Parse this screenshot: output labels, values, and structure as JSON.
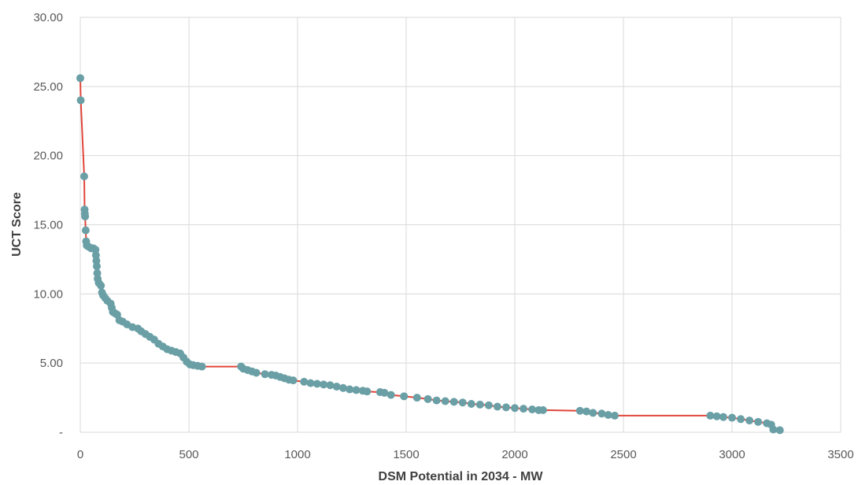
{
  "chart_data": {
    "type": "scatter",
    "xlabel": "DSM Potential in 2034 - MW",
    "ylabel": "UCT Score",
    "xlim": [
      0,
      3500
    ],
    "ylim": [
      0,
      30
    ],
    "grid": true,
    "x_ticks": [
      0,
      500,
      1000,
      1500,
      2000,
      2500,
      3000,
      3500
    ],
    "x_tick_labels": [
      "0",
      "500",
      "1000",
      "1500",
      "2000",
      "2500",
      "3000",
      "3500"
    ],
    "y_ticks": [
      0,
      5,
      10,
      15,
      20,
      25,
      30
    ],
    "y_tick_labels": [
      "-",
      "5.00",
      "10.00",
      "15.00",
      "20.00",
      "25.00",
      "30.00"
    ],
    "colors": {
      "marker": "#6a9fa6",
      "line": "#e0453a",
      "grid": "#d9d9d9"
    },
    "series": [
      {
        "style": "line-with-markers",
        "points": [
          [
            0,
            25.6
          ],
          [
            2,
            24.0
          ],
          [
            18,
            18.5
          ],
          [
            20,
            16.1
          ],
          [
            21,
            15.8
          ],
          [
            22,
            15.6
          ],
          [
            25,
            14.6
          ],
          [
            27,
            13.8
          ],
          [
            30,
            13.5
          ],
          [
            40,
            13.4
          ],
          [
            50,
            13.3
          ],
          [
            60,
            13.3
          ],
          [
            70,
            13.2
          ],
          [
            72,
            12.8
          ],
          [
            74,
            12.4
          ],
          [
            76,
            12.0
          ],
          [
            78,
            11.5
          ],
          [
            80,
            11.1
          ],
          [
            85,
            10.8
          ],
          [
            95,
            10.6
          ],
          [
            100,
            10.1
          ],
          [
            105,
            9.9
          ],
          [
            115,
            9.7
          ],
          [
            125,
            9.5
          ],
          [
            140,
            9.3
          ],
          [
            145,
            9.0
          ],
          [
            150,
            8.7
          ],
          [
            160,
            8.6
          ],
          [
            170,
            8.5
          ],
          [
            180,
            8.1
          ],
          [
            195,
            8.0
          ],
          [
            215,
            7.8
          ],
          [
            240,
            7.6
          ],
          [
            265,
            7.5
          ],
          [
            280,
            7.3
          ],
          [
            300,
            7.1
          ],
          [
            320,
            6.9
          ],
          [
            340,
            6.7
          ],
          [
            360,
            6.4
          ],
          [
            380,
            6.2
          ],
          [
            400,
            6.0
          ],
          [
            420,
            5.9
          ],
          [
            440,
            5.8
          ],
          [
            460,
            5.7
          ],
          [
            475,
            5.4
          ],
          [
            490,
            5.1
          ],
          [
            505,
            4.9
          ],
          [
            520,
            4.85
          ],
          [
            540,
            4.8
          ],
          [
            560,
            4.75
          ],
          [
            740,
            4.75
          ],
          [
            750,
            4.6
          ],
          [
            770,
            4.5
          ],
          [
            790,
            4.4
          ],
          [
            810,
            4.3
          ],
          [
            850,
            4.2
          ],
          [
            880,
            4.15
          ],
          [
            900,
            4.1
          ],
          [
            920,
            4.0
          ],
          [
            940,
            3.9
          ],
          [
            960,
            3.8
          ],
          [
            980,
            3.75
          ],
          [
            1030,
            3.65
          ],
          [
            1060,
            3.55
          ],
          [
            1090,
            3.5
          ],
          [
            1120,
            3.45
          ],
          [
            1150,
            3.4
          ],
          [
            1180,
            3.3
          ],
          [
            1210,
            3.2
          ],
          [
            1240,
            3.1
          ],
          [
            1270,
            3.05
          ],
          [
            1300,
            3.0
          ],
          [
            1320,
            2.95
          ],
          [
            1380,
            2.9
          ],
          [
            1400,
            2.85
          ],
          [
            1430,
            2.7
          ],
          [
            1490,
            2.6
          ],
          [
            1550,
            2.5
          ],
          [
            1600,
            2.4
          ],
          [
            1640,
            2.3
          ],
          [
            1680,
            2.25
          ],
          [
            1720,
            2.2
          ],
          [
            1760,
            2.15
          ],
          [
            1800,
            2.05
          ],
          [
            1840,
            2.0
          ],
          [
            1880,
            1.95
          ],
          [
            1920,
            1.85
          ],
          [
            1960,
            1.8
          ],
          [
            2000,
            1.75
          ],
          [
            2040,
            1.7
          ],
          [
            2080,
            1.65
          ],
          [
            2110,
            1.6
          ],
          [
            2130,
            1.6
          ],
          [
            2300,
            1.55
          ],
          [
            2330,
            1.5
          ],
          [
            2360,
            1.4
          ],
          [
            2400,
            1.35
          ],
          [
            2430,
            1.25
          ],
          [
            2460,
            1.2
          ],
          [
            2900,
            1.2
          ],
          [
            2930,
            1.15
          ],
          [
            2960,
            1.1
          ],
          [
            3000,
            1.05
          ],
          [
            3040,
            0.95
          ],
          [
            3080,
            0.85
          ],
          [
            3120,
            0.75
          ],
          [
            3160,
            0.65
          ],
          [
            3180,
            0.55
          ],
          [
            3190,
            0.2
          ],
          [
            3220,
            0.15
          ]
        ]
      }
    ]
  }
}
